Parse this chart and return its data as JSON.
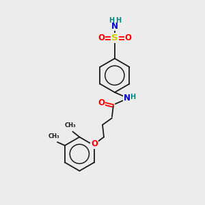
{
  "bg_color": "#ececec",
  "bond_color": "#1a1a1a",
  "atom_colors": {
    "O": "#ff0000",
    "N": "#0000cc",
    "S": "#cccc00",
    "H": "#008888",
    "C": "#1a1a1a"
  },
  "font_size_atom": 8.5,
  "font_size_h": 7,
  "figsize": [
    3.0,
    3.0
  ],
  "dpi": 100,
  "ring_r": 25,
  "lw": 1.3
}
